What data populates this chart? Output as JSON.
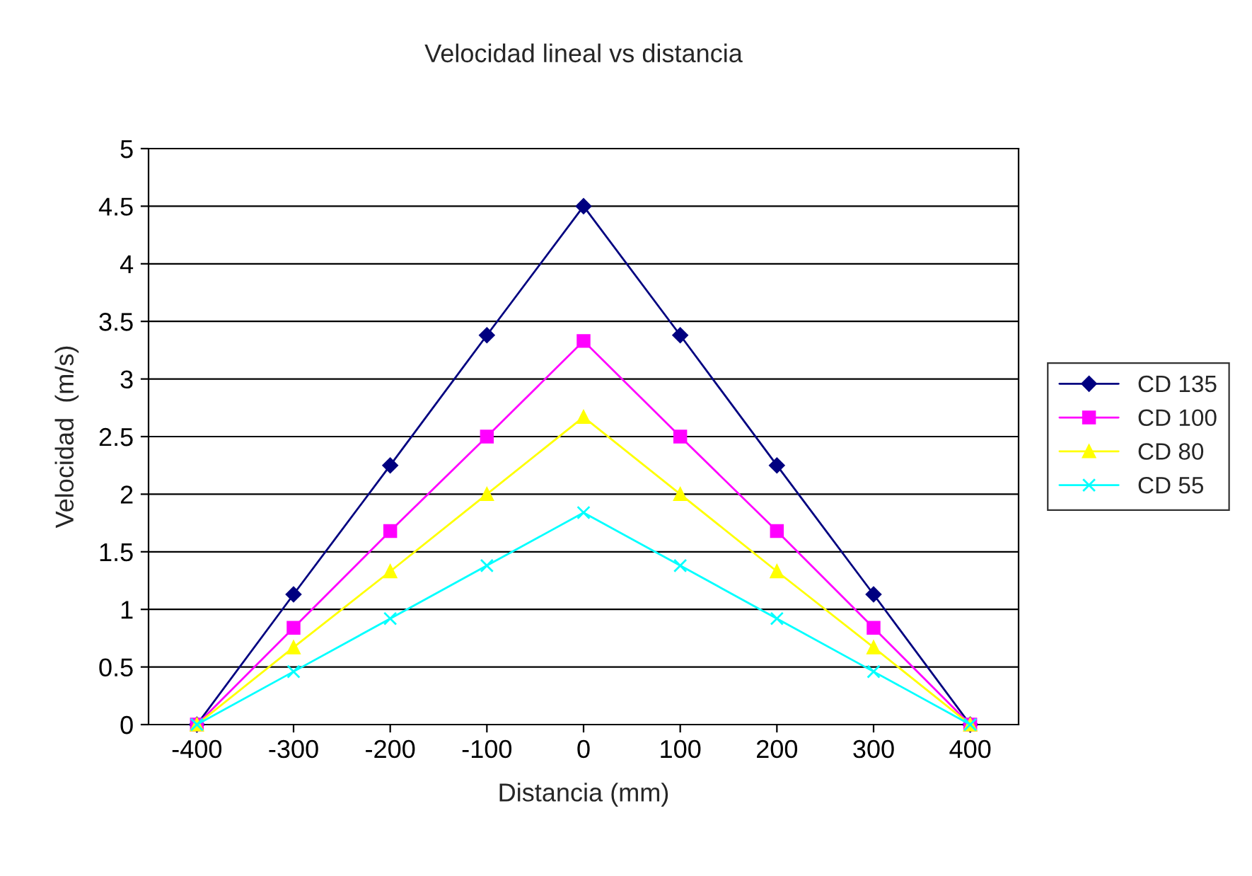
{
  "chart_data": {
    "type": "line",
    "title": "Velocidad lineal vs distancia",
    "xlabel": "Distancia (mm)",
    "ylabel": "Velocidad  (m/s)",
    "categories": [
      "-400",
      "-300",
      "-200",
      "-100",
      "0",
      "100",
      "200",
      "300",
      "400"
    ],
    "series": [
      {
        "name": "CD 135",
        "color": "#000080",
        "marker": "diamond",
        "values": [
          0,
          1.13,
          2.25,
          3.38,
          4.5,
          3.38,
          2.25,
          1.13,
          0
        ]
      },
      {
        "name": "CD 100",
        "color": "#ff00ff",
        "marker": "square",
        "values": [
          0,
          0.84,
          1.68,
          2.5,
          3.33,
          2.5,
          1.68,
          0.84,
          0
        ]
      },
      {
        "name": "CD 80",
        "color": "#ffff00",
        "marker": "triangle",
        "values": [
          0,
          0.67,
          1.33,
          2.0,
          2.67,
          2.0,
          1.33,
          0.67,
          0
        ]
      },
      {
        "name": "CD 55",
        "color": "#00ffff",
        "marker": "cross",
        "values": [
          0,
          0.46,
          0.92,
          1.38,
          1.84,
          1.38,
          0.92,
          0.46,
          0
        ]
      }
    ],
    "ylim": [
      0,
      5
    ],
    "yticks": [
      0,
      0.5,
      1,
      1.5,
      2,
      2.5,
      3,
      3.5,
      4,
      4.5,
      5
    ],
    "grid": "y",
    "legend": "right",
    "line_style": "solid"
  }
}
